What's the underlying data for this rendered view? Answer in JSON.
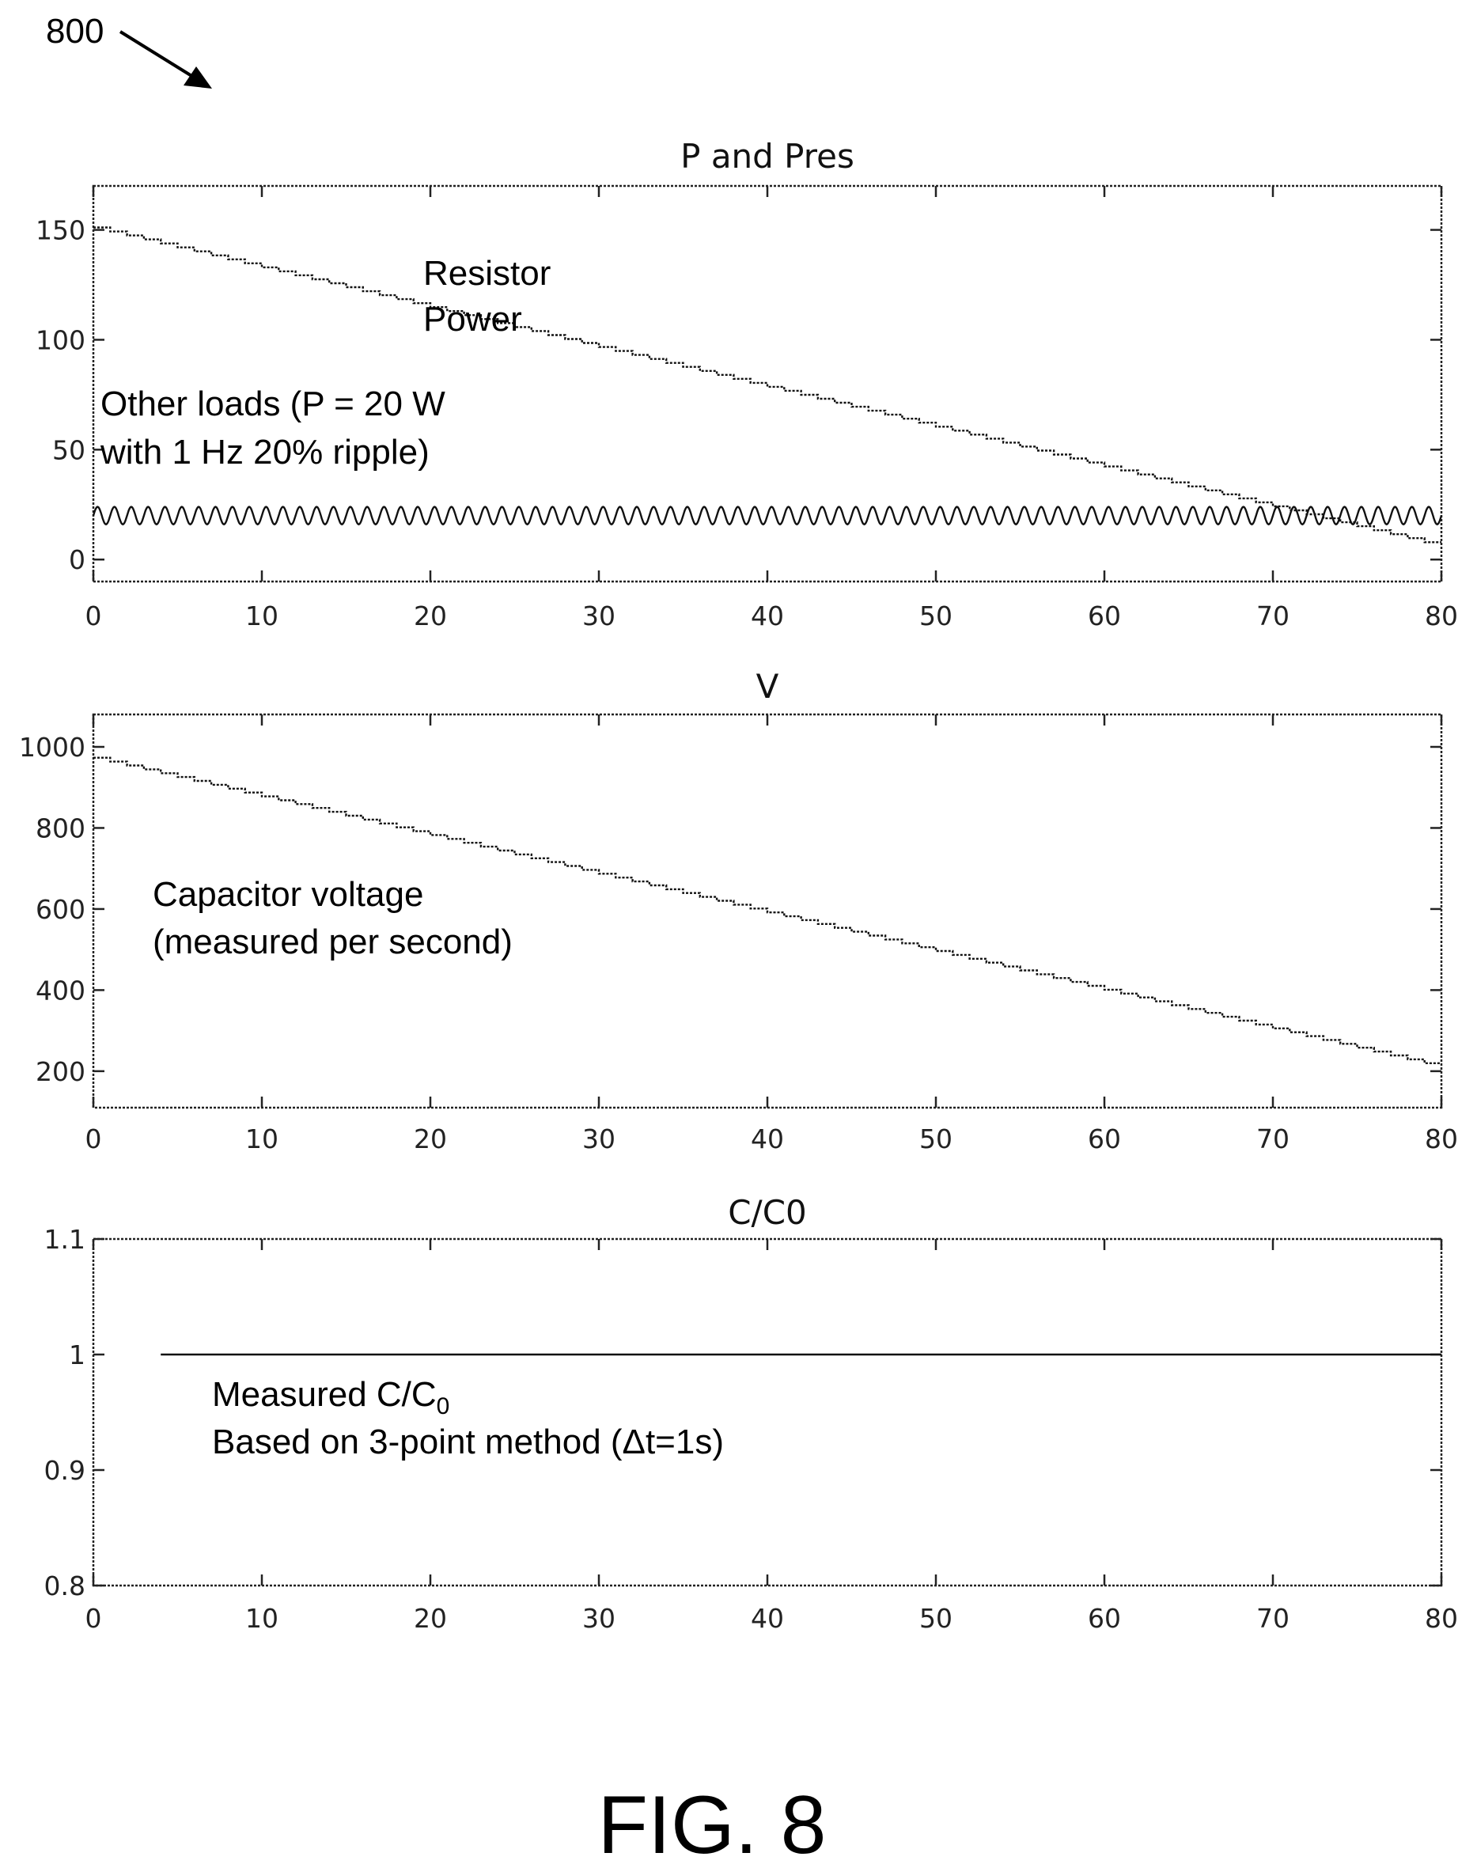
{
  "reference": {
    "number": "800"
  },
  "figure_label": "FIG. 8",
  "chart_data": [
    {
      "type": "line",
      "title": "P and Pres",
      "xlabel": "",
      "ylabel": "",
      "xlim": [
        0,
        80
      ],
      "ylim": [
        -10,
        170
      ],
      "x_ticks": [
        0,
        10,
        20,
        30,
        40,
        50,
        60,
        70,
        80
      ],
      "y_ticks": [
        0,
        50,
        100,
        150
      ],
      "grid": false,
      "annotations": [
        {
          "id": "resistor",
          "lines": [
            "Resistor",
            "Power"
          ]
        },
        {
          "id": "other",
          "lines": [
            "Other loads (P = 20 W",
            "with 1 Hz 20% ripple)"
          ]
        }
      ],
      "series": [
        {
          "id": "resistor_power",
          "style": "step",
          "x": [
            0,
            80
          ],
          "values": [
            152,
            7
          ]
        },
        {
          "id": "other_loads",
          "style": "sine",
          "mean": 20,
          "ripple_fraction": 0.2,
          "frequency_hz": 1,
          "x": [
            0,
            80
          ]
        }
      ]
    },
    {
      "type": "line",
      "title": "V",
      "xlabel": "",
      "ylabel": "",
      "xlim": [
        0,
        80
      ],
      "ylim": [
        110,
        1080
      ],
      "x_ticks": [
        0,
        10,
        20,
        30,
        40,
        50,
        60,
        70,
        80
      ],
      "y_ticks": [
        200,
        400,
        600,
        800,
        1000
      ],
      "grid": false,
      "annotations": [
        {
          "id": "capv",
          "lines": [
            "Capacitor voltage",
            "(measured per second)"
          ]
        }
      ],
      "series": [
        {
          "id": "capacitor_voltage",
          "style": "step",
          "x": [
            0,
            80
          ],
          "values": [
            978,
            215
          ]
        }
      ]
    },
    {
      "type": "line",
      "title": "C/C0",
      "xlabel": "",
      "ylabel": "",
      "xlim": [
        0,
        80
      ],
      "ylim": [
        0.8,
        1.1
      ],
      "x_ticks": [
        0,
        10,
        20,
        30,
        40,
        50,
        60,
        70,
        80
      ],
      "y_ticks": [
        0.8,
        0.9,
        1,
        1.1
      ],
      "grid": false,
      "annotations": [
        {
          "id": "meas",
          "lines": [
            "Measured C/C",
            "Based on 3-point method (Δt=1s)"
          ],
          "subscript": "0"
        }
      ],
      "series": [
        {
          "id": "measured_c_ratio",
          "style": "line",
          "x": [
            4,
            80
          ],
          "values": [
            1,
            1
          ]
        }
      ]
    }
  ]
}
